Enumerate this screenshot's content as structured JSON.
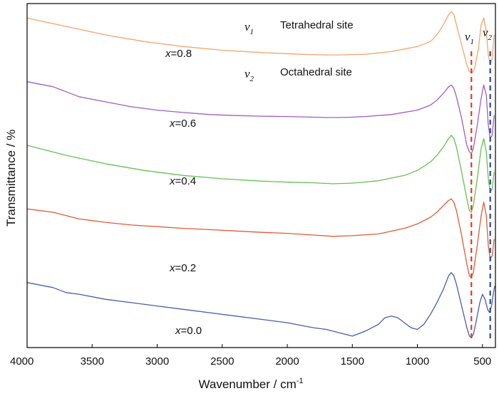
{
  "chart_data": {
    "type": "line",
    "title": "",
    "xlabel": "Wavenumber / cm",
    "xlabel_sup": "-1",
    "ylabel": "Transmittance / %",
    "xlim": [
      4000,
      400
    ],
    "x_reversed": true,
    "y_ticks_shown": false,
    "grid": false,
    "x_ticks": [
      "4000",
      "3500",
      "3000",
      "2500",
      "2000",
      "1500",
      "1000",
      "500"
    ],
    "series": [
      {
        "name": "x=0.8",
        "label_var": "x",
        "label_rest": "=0.8",
        "color": "#f4a46c",
        "x": [
          4000,
          3700,
          3400,
          3100,
          2800,
          2500,
          2200,
          1900,
          1700,
          1600,
          1400,
          1200,
          1000,
          900,
          850,
          800,
          760,
          740,
          720,
          700,
          660,
          620,
          600,
          580,
          560,
          530,
          510,
          490,
          470,
          455,
          440,
          425,
          410
        ],
        "y": [
          98,
          95.5,
          93,
          91,
          89.5,
          88.4,
          87.7,
          87.2,
          87,
          87,
          87.2,
          88,
          89.5,
          91,
          93,
          96,
          99,
          100,
          99,
          96,
          90,
          84,
          82,
          81.6,
          83,
          89,
          96,
          98,
          94,
          87,
          84,
          86,
          93
        ]
      },
      {
        "name": "x=0.6",
        "label_var": "x",
        "label_rest": "=0.6",
        "color": "#a05dc0",
        "x": [
          4000,
          3800,
          3700,
          3600,
          3400,
          3200,
          3000,
          2800,
          2600,
          2400,
          2200,
          2000,
          1800,
          1700,
          1600,
          1500,
          1400,
          1200,
          1000,
          900,
          850,
          800,
          760,
          740,
          720,
          700,
          660,
          620,
          600,
          585,
          570,
          540,
          510,
          490,
          470,
          455,
          440,
          425,
          410
        ],
        "y": [
          79,
          77.5,
          76,
          74.5,
          73,
          71.5,
          70.5,
          69.8,
          69.2,
          68.9,
          68.7,
          68.6,
          68.4,
          68.3,
          68.3,
          68.4,
          68.6,
          69.2,
          70.5,
          72,
          73.5,
          75.5,
          77.5,
          78,
          77,
          74.5,
          68,
          60,
          58,
          57.5,
          59,
          66,
          74,
          78,
          75,
          66,
          62,
          63,
          69
        ]
      },
      {
        "name": "x=0.4",
        "label_var": "x",
        "label_rest": "=0.4",
        "color": "#66c04e",
        "x": [
          4000,
          3700,
          3400,
          3100,
          2800,
          2500,
          2200,
          2000,
          1800,
          1650,
          1500,
          1300,
          1100,
          1000,
          900,
          850,
          800,
          760,
          740,
          720,
          700,
          660,
          620,
          600,
          585,
          570,
          540,
          510,
          490,
          470,
          455,
          440,
          425,
          410
        ],
        "y": [
          60,
          57,
          54.5,
          52.5,
          51,
          50,
          49.3,
          49,
          48.8,
          48.5,
          48.7,
          49.4,
          51,
          52.5,
          55,
          57,
          59.5,
          62,
          63,
          62,
          59.5,
          52,
          44,
          40.5,
          40,
          42,
          50,
          59,
          62,
          58,
          50,
          46,
          47,
          52
        ]
      },
      {
        "name": "x=0.2",
        "label_var": "x",
        "label_rest": "=0.2",
        "color": "#e05c38",
        "x": [
          4000,
          3800,
          3700,
          3600,
          3400,
          3200,
          3000,
          2800,
          2600,
          2400,
          2200,
          2000,
          1800,
          1650,
          1500,
          1300,
          1100,
          1000,
          900,
          850,
          800,
          760,
          740,
          720,
          700,
          660,
          620,
          600,
          585,
          570,
          540,
          510,
          490,
          470,
          455,
          440,
          425,
          410
        ],
        "y": [
          41,
          40,
          39,
          38,
          37,
          36.2,
          35.7,
          35.2,
          34.8,
          34.4,
          34,
          33.7,
          33.2,
          32.8,
          33,
          33.5,
          35.2,
          36.5,
          38.5,
          40,
          42,
          43.5,
          44,
          43,
          40.5,
          33,
          24.5,
          21,
          20.5,
          22,
          30,
          39,
          43,
          39,
          30,
          26,
          27,
          32
        ]
      },
      {
        "name": "x=0.0",
        "label_var": "x",
        "label_rest": "=0.0",
        "color": "#4a5cae",
        "x": [
          4000,
          3800,
          3700,
          3600,
          3400,
          3200,
          3000,
          2800,
          2600,
          2400,
          2200,
          2000,
          1800,
          1700,
          1600,
          1500,
          1400,
          1300,
          1250,
          1200,
          1150,
          1100,
          1050,
          1000,
          950,
          900,
          850,
          800,
          760,
          740,
          720,
          700,
          660,
          620,
          600,
          585,
          570,
          550,
          520,
          500,
          480,
          460,
          445,
          430,
          415,
          405
        ],
        "y": [
          19,
          17.5,
          16,
          15.5,
          14,
          13,
          12,
          11,
          10,
          9,
          8,
          7,
          5.5,
          5,
          4,
          3,
          4.5,
          6.5,
          8.5,
          9,
          8.5,
          7,
          5.5,
          5,
          6.5,
          9.5,
          13,
          17,
          21,
          22,
          21,
          18.5,
          12,
          5.5,
          3,
          2.5,
          3.5,
          7,
          13,
          15.5,
          14,
          11,
          10,
          12,
          16,
          18
        ]
      }
    ],
    "vlines": [
      {
        "x": 585,
        "color": "#e03a28"
      },
      {
        "x": 440,
        "color": "#2a4aa0"
      }
    ],
    "annotations": {
      "nu1_symbol": "ν",
      "nu1_sub": "1",
      "nu1_text": "Tetrahedral site",
      "nu2_symbol": "ν",
      "nu2_sub": "2",
      "nu2_text": "Octahedral site",
      "marker1_symbol": "ν",
      "marker1_sub": "1",
      "marker2_symbol": "ν",
      "marker2_sub": "2"
    }
  }
}
